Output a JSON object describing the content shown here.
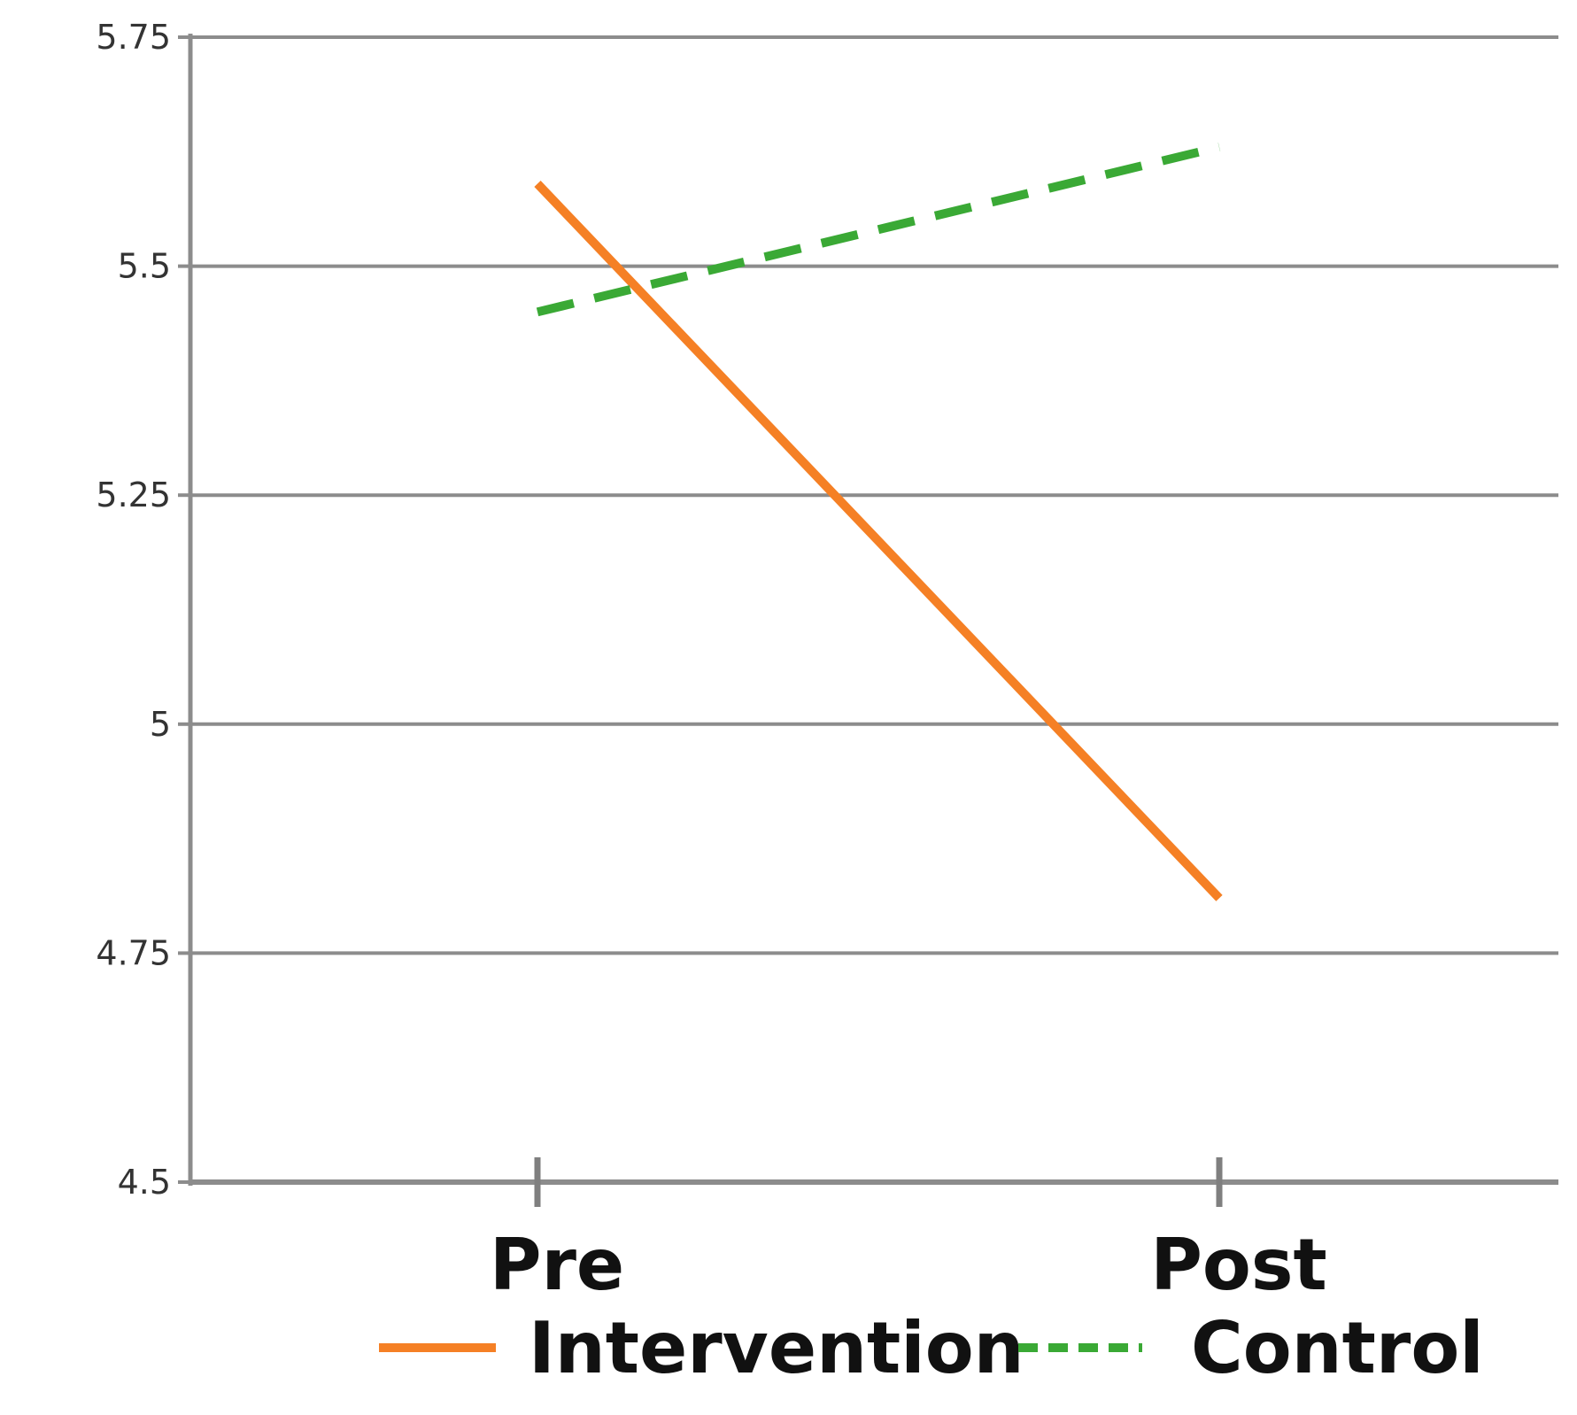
{
  "chart_data": {
    "type": "line",
    "title": "",
    "xlabel": "",
    "ylabel": "",
    "categories": [
      "Pre",
      "Post"
    ],
    "ylim": [
      4.5,
      5.75
    ],
    "yticks": [
      "4.5",
      "4.75",
      "5",
      "5.25",
      "5.5",
      "5.75"
    ],
    "grid": true,
    "legend_position": "bottom",
    "series": [
      {
        "name": "Intervention",
        "values": [
          5.59,
          4.81
        ],
        "color": "#f58025",
        "dash": "solid"
      },
      {
        "name": "Control",
        "values": [
          5.45,
          5.63
        ],
        "color": "#3aa935",
        "dash": "dashed"
      }
    ]
  }
}
